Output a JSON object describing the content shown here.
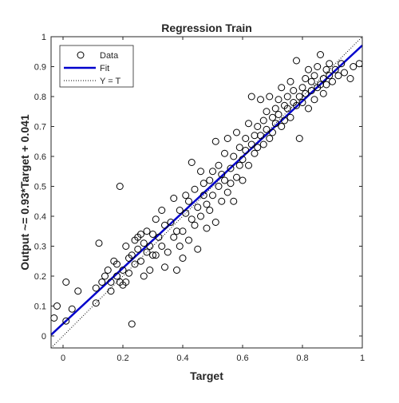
{
  "chart_data": {
    "type": "scatter",
    "title": "Regression Train",
    "xlabel": "Target",
    "ylabel": "Output ~= 0.93*Target + 0.041",
    "xlim": [
      -0.04,
      1.0
    ],
    "ylim": [
      -0.04,
      1.0
    ],
    "xticks": [
      {
        "value": 0,
        "label": "0"
      },
      {
        "value": 0.2,
        "label": "0.2"
      },
      {
        "value": 0.4,
        "label": "0.4"
      },
      {
        "value": 0.6,
        "label": "0.6"
      },
      {
        "value": 0.8,
        "label": "0.8"
      },
      {
        "value": 1,
        "label": "1"
      }
    ],
    "yticks": [
      {
        "value": 0,
        "label": "0"
      },
      {
        "value": 0.1,
        "label": "0.1"
      },
      {
        "value": 0.2,
        "label": "0.2"
      },
      {
        "value": 0.3,
        "label": "0.3"
      },
      {
        "value": 0.4,
        "label": "0.4"
      },
      {
        "value": 0.5,
        "label": "0.5"
      },
      {
        "value": 0.6,
        "label": "0.6"
      },
      {
        "value": 0.7,
        "label": "0.7"
      },
      {
        "value": 0.8,
        "label": "0.8"
      },
      {
        "value": 0.9,
        "label": "0.9"
      },
      {
        "value": 1,
        "label": "1"
      }
    ],
    "grid": false,
    "legend_position": "top-left",
    "legend": [
      {
        "label": "Data",
        "marker": "circle",
        "color": "#000000"
      },
      {
        "label": "Fit",
        "style": "solid",
        "color": "#0000CC"
      },
      {
        "label": "Y = T",
        "style": "dotted",
        "color": "#000000"
      }
    ],
    "fit": {
      "slope": 0.93,
      "intercept": 0.041,
      "color": "#0000CC"
    },
    "identity": {
      "slope": 1,
      "intercept": 0
    },
    "series": [
      {
        "name": "Data",
        "points": [
          [
            -0.03,
            0.06
          ],
          [
            -0.02,
            0.1
          ],
          [
            0.01,
            0.18
          ],
          [
            0.01,
            0.05
          ],
          [
            0.03,
            0.09
          ],
          [
            0.05,
            0.15
          ],
          [
            0.11,
            0.11
          ],
          [
            0.11,
            0.16
          ],
          [
            0.12,
            0.31
          ],
          [
            0.13,
            0.18
          ],
          [
            0.14,
            0.2
          ],
          [
            0.15,
            0.22
          ],
          [
            0.16,
            0.15
          ],
          [
            0.16,
            0.18
          ],
          [
            0.17,
            0.25
          ],
          [
            0.18,
            0.2
          ],
          [
            0.18,
            0.24
          ],
          [
            0.19,
            0.5
          ],
          [
            0.19,
            0.18
          ],
          [
            0.2,
            0.17
          ],
          [
            0.2,
            0.22
          ],
          [
            0.21,
            0.3
          ],
          [
            0.21,
            0.18
          ],
          [
            0.22,
            0.26
          ],
          [
            0.22,
            0.21
          ],
          [
            0.23,
            0.04
          ],
          [
            0.23,
            0.27
          ],
          [
            0.24,
            0.32
          ],
          [
            0.24,
            0.24
          ],
          [
            0.25,
            0.29
          ],
          [
            0.25,
            0.33
          ],
          [
            0.26,
            0.25
          ],
          [
            0.26,
            0.34
          ],
          [
            0.27,
            0.2
          ],
          [
            0.27,
            0.31
          ],
          [
            0.28,
            0.28
          ],
          [
            0.28,
            0.35
          ],
          [
            0.29,
            0.22
          ],
          [
            0.29,
            0.3
          ],
          [
            0.3,
            0.27
          ],
          [
            0.3,
            0.34
          ],
          [
            0.31,
            0.39
          ],
          [
            0.31,
            0.27
          ],
          [
            0.32,
            0.33
          ],
          [
            0.33,
            0.42
          ],
          [
            0.33,
            0.3
          ],
          [
            0.34,
            0.23
          ],
          [
            0.34,
            0.37
          ],
          [
            0.35,
            0.28
          ],
          [
            0.36,
            0.38
          ],
          [
            0.37,
            0.46
          ],
          [
            0.37,
            0.33
          ],
          [
            0.38,
            0.35
          ],
          [
            0.38,
            0.22
          ],
          [
            0.39,
            0.3
          ],
          [
            0.39,
            0.42
          ],
          [
            0.4,
            0.35
          ],
          [
            0.4,
            0.26
          ],
          [
            0.41,
            0.41
          ],
          [
            0.41,
            0.47
          ],
          [
            0.42,
            0.45
          ],
          [
            0.42,
            0.32
          ],
          [
            0.43,
            0.39
          ],
          [
            0.43,
            0.58
          ],
          [
            0.44,
            0.49
          ],
          [
            0.44,
            0.37
          ],
          [
            0.45,
            0.43
          ],
          [
            0.45,
            0.29
          ],
          [
            0.46,
            0.4
          ],
          [
            0.46,
            0.55
          ],
          [
            0.47,
            0.47
          ],
          [
            0.47,
            0.51
          ],
          [
            0.48,
            0.36
          ],
          [
            0.48,
            0.44
          ],
          [
            0.49,
            0.52
          ],
          [
            0.49,
            0.42
          ],
          [
            0.5,
            0.55
          ],
          [
            0.5,
            0.47
          ],
          [
            0.51,
            0.65
          ],
          [
            0.51,
            0.38
          ],
          [
            0.52,
            0.5
          ],
          [
            0.52,
            0.57
          ],
          [
            0.53,
            0.54
          ],
          [
            0.53,
            0.45
          ],
          [
            0.54,
            0.61
          ],
          [
            0.54,
            0.52
          ],
          [
            0.55,
            0.48
          ],
          [
            0.55,
            0.66
          ],
          [
            0.56,
            0.56
          ],
          [
            0.56,
            0.51
          ],
          [
            0.57,
            0.6
          ],
          [
            0.57,
            0.45
          ],
          [
            0.58,
            0.53
          ],
          [
            0.58,
            0.68
          ],
          [
            0.59,
            0.57
          ],
          [
            0.59,
            0.63
          ],
          [
            0.6,
            0.59
          ],
          [
            0.6,
            0.52
          ],
          [
            0.61,
            0.66
          ],
          [
            0.61,
            0.62
          ],
          [
            0.62,
            0.57
          ],
          [
            0.62,
            0.71
          ],
          [
            0.63,
            0.64
          ],
          [
            0.63,
            0.8
          ],
          [
            0.64,
            0.61
          ],
          [
            0.64,
            0.67
          ],
          [
            0.65,
            0.7
          ],
          [
            0.65,
            0.63
          ],
          [
            0.66,
            0.79
          ],
          [
            0.66,
            0.67
          ],
          [
            0.67,
            0.64
          ],
          [
            0.67,
            0.72
          ],
          [
            0.68,
            0.69
          ],
          [
            0.68,
            0.75
          ],
          [
            0.69,
            0.66
          ],
          [
            0.69,
            0.8
          ],
          [
            0.7,
            0.73
          ],
          [
            0.7,
            0.68
          ],
          [
            0.71,
            0.76
          ],
          [
            0.71,
            0.71
          ],
          [
            0.72,
            0.79
          ],
          [
            0.72,
            0.74
          ],
          [
            0.73,
            0.7
          ],
          [
            0.73,
            0.83
          ],
          [
            0.74,
            0.77
          ],
          [
            0.74,
            0.72
          ],
          [
            0.75,
            0.8
          ],
          [
            0.75,
            0.76
          ],
          [
            0.76,
            0.85
          ],
          [
            0.76,
            0.73
          ],
          [
            0.77,
            0.78
          ],
          [
            0.77,
            0.82
          ],
          [
            0.78,
            0.92
          ],
          [
            0.78,
            0.77
          ],
          [
            0.79,
            0.8
          ],
          [
            0.79,
            0.66
          ],
          [
            0.8,
            0.83
          ],
          [
            0.8,
            0.78
          ],
          [
            0.81,
            0.86
          ],
          [
            0.81,
            0.81
          ],
          [
            0.82,
            0.76
          ],
          [
            0.82,
            0.89
          ],
          [
            0.83,
            0.82
          ],
          [
            0.83,
            0.85
          ],
          [
            0.84,
            0.79
          ],
          [
            0.84,
            0.87
          ],
          [
            0.85,
            0.83
          ],
          [
            0.85,
            0.9
          ],
          [
            0.86,
            0.84
          ],
          [
            0.86,
            0.94
          ],
          [
            0.87,
            0.81
          ],
          [
            0.87,
            0.86
          ],
          [
            0.88,
            0.89
          ],
          [
            0.88,
            0.84
          ],
          [
            0.89,
            0.91
          ],
          [
            0.89,
            0.87
          ],
          [
            0.9,
            0.85
          ],
          [
            0.91,
            0.89
          ],
          [
            0.92,
            0.87
          ],
          [
            0.93,
            0.91
          ],
          [
            0.94,
            0.88
          ],
          [
            0.96,
            0.86
          ],
          [
            0.97,
            0.9
          ],
          [
            0.99,
            0.91
          ]
        ]
      }
    ]
  }
}
